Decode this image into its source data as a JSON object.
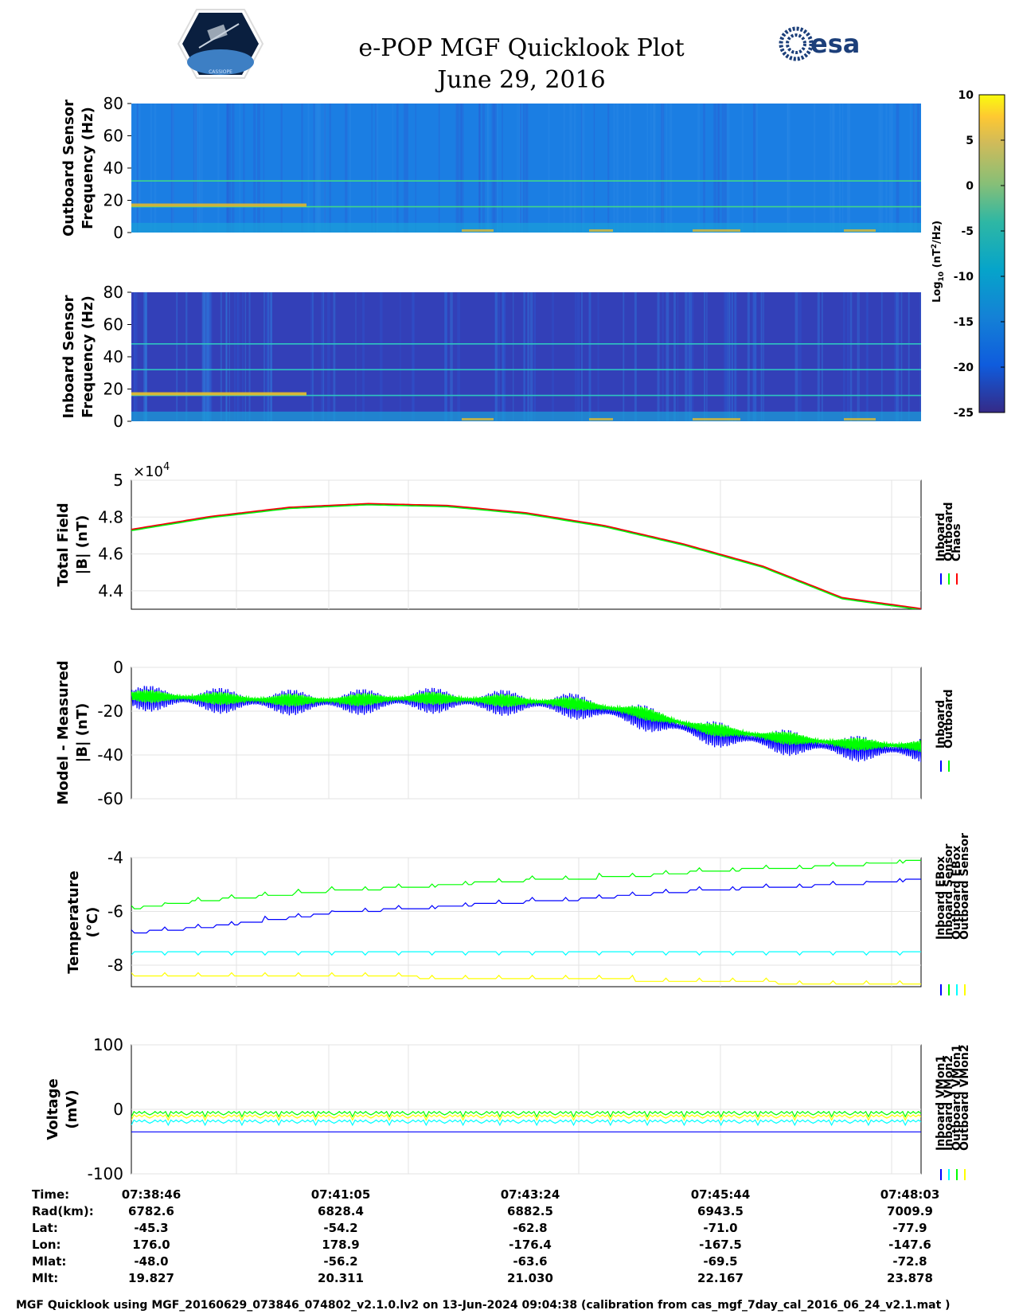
{
  "header": {
    "title_line1": "e-POP MGF Quicklook Plot",
    "title_line2": "June 29, 2016",
    "left_logo": "cassiope-mission-patch",
    "left_logo_text": "CASSIOPE",
    "right_logo": "esa-logo",
    "right_logo_text": "esa"
  },
  "colors": {
    "inboard": "#0000ff",
    "outboard": "#00ff00",
    "chaos": "#ff0000",
    "cyan": "#00ffff",
    "yellow": "#ffff00",
    "grid": "#e3e3e3"
  },
  "colorbar": {
    "ticks": [
      "10",
      "5",
      "0",
      "-5",
      "-10",
      "-15",
      "-20",
      "-25"
    ],
    "range": [
      -25,
      10
    ],
    "label": "Log10 (nT2/Hz)",
    "label_parts": {
      "a": "Log",
      "b": "10",
      "c": " (nT",
      "d": "2",
      "e": "/Hz)"
    },
    "colormap": "parula"
  },
  "chart_data": [
    {
      "type": "heatmap",
      "name": "outboard-spectrogram",
      "ylabel_line1": "Outboard Sensor",
      "ylabel_line2": "Frequency (Hz)",
      "yticks": [
        "80",
        "60",
        "40",
        "20",
        "0"
      ],
      "ylim": [
        0,
        80
      ],
      "background_log10": -15,
      "lines_hz": [
        16,
        32
      ],
      "note": ""
    },
    {
      "type": "heatmap",
      "name": "inboard-spectrogram",
      "ylabel_line1": "Inboard Sensor",
      "ylabel_line2": "Frequency (Hz)",
      "yticks": [
        "80",
        "60",
        "40",
        "20",
        "0"
      ],
      "ylim": [
        0,
        80
      ],
      "background_log10": -20,
      "lines_hz": [
        16,
        32,
        48
      ]
    },
    {
      "type": "line",
      "name": "total-field",
      "ylabel_line1": "Total Field",
      "ylabel_line2": "|B| (nT)",
      "exponent_base": "×10",
      "exponent_power": "4",
      "yticks": [
        "5",
        "4.8",
        "4.6",
        "4.4"
      ],
      "ylim": [
        4.3,
        5.0
      ],
      "x": [
        "07:38:46",
        "07:39:46",
        "07:40:46",
        "07:41:46",
        "07:42:46",
        "07:43:46",
        "07:44:46",
        "07:45:46",
        "07:46:46",
        "07:47:46",
        "07:48:03"
      ],
      "series": [
        {
          "name": "Inboard",
          "color_key": "inboard"
        },
        {
          "name": "Outboard",
          "color_key": "outboard"
        },
        {
          "name": "Chaos",
          "color_key": "chaos"
        }
      ],
      "values": [
        4.73,
        4.8,
        4.85,
        4.87,
        4.86,
        4.82,
        4.75,
        4.65,
        4.53,
        4.36,
        4.3
      ]
    },
    {
      "type": "line",
      "name": "model-minus-measured",
      "ylabel_line1": "Model - Measured",
      "ylabel_line2": "|B| (nT)",
      "yticks": [
        "0",
        "-20",
        "-40",
        "-60"
      ],
      "ylim": [
        -60,
        0
      ],
      "series": [
        {
          "name": "Inboard",
          "color_key": "inboard",
          "values": [
            -14,
            -15,
            -16,
            -16,
            -15,
            -16,
            -17,
            -22,
            -30,
            -34,
            -37,
            -38
          ],
          "amplitude": 6
        },
        {
          "name": "Outboard",
          "color_key": "outboard",
          "values": [
            -13,
            -14,
            -15,
            -15,
            -14,
            -15,
            -16,
            -20,
            -28,
            -32,
            -35,
            -36
          ],
          "amplitude": 3
        }
      ]
    },
    {
      "type": "line",
      "name": "temperature",
      "ylabel_line1": "Temperature",
      "ylabel_line2": "(°C)",
      "yticks": [
        "-4",
        "-6",
        "-8"
      ],
      "ylim": [
        -8.8,
        -4
      ],
      "series": [
        {
          "name": "Inboard EBox",
          "color_key": "inboard",
          "values": [
            -6.8,
            -6.6,
            -6.3,
            -6.0,
            -5.9,
            -5.7,
            -5.6,
            -5.4,
            -5.2,
            -5.1,
            -5.0,
            -4.8
          ]
        },
        {
          "name": "Inboard Sensor",
          "color_key": "outboard",
          "values": [
            -5.9,
            -5.6,
            -5.4,
            -5.2,
            -5.1,
            -4.9,
            -4.8,
            -4.7,
            -4.5,
            -4.4,
            -4.3,
            -4.1
          ]
        },
        {
          "name": "Outboard EBox",
          "color_key": "cyan",
          "values": [
            -7.5,
            -7.5,
            -7.5,
            -7.5,
            -7.5,
            -7.5,
            -7.5,
            -7.5,
            -7.5,
            -7.5,
            -7.5,
            -7.5
          ]
        },
        {
          "name": "Outboard Sensor",
          "color_key": "yellow",
          "values": [
            -8.4,
            -8.4,
            -8.4,
            -8.4,
            -8.45,
            -8.5,
            -8.5,
            -8.55,
            -8.6,
            -8.65,
            -8.7,
            -8.7
          ]
        }
      ]
    },
    {
      "type": "line",
      "name": "voltage",
      "ylabel_line1": "Voltage",
      "ylabel_line2": "(mV)",
      "yticks": [
        "100",
        "0",
        "-100"
      ],
      "ylim": [
        -100,
        100
      ],
      "series": [
        {
          "name": "Inboard VMon1",
          "color_key": "inboard",
          "value": -35
        },
        {
          "name": "Inboard VMon2",
          "color_key": "cyan",
          "value": -18
        },
        {
          "name": "Outboard VMon1",
          "color_key": "outboard",
          "value": -5
        },
        {
          "name": "Outboard VMon2",
          "color_key": "yellow",
          "value": -10
        }
      ]
    }
  ],
  "info_table": {
    "rows": [
      {
        "label": "Time:",
        "values": [
          "07:38:46",
          "07:41:05",
          "07:43:24",
          "07:45:44",
          "07:48:03"
        ]
      },
      {
        "label": "Rad(km):",
        "values": [
          "6782.6",
          "6828.4",
          "6882.5",
          "6943.5",
          "7009.9"
        ]
      },
      {
        "label": "Lat:",
        "values": [
          "-45.3",
          "-54.2",
          "-62.8",
          "-71.0",
          "-77.9"
        ]
      },
      {
        "label": "Lon:",
        "values": [
          "176.0",
          "178.9",
          "-176.4",
          "-167.5",
          "-147.6"
        ]
      },
      {
        "label": "Mlat:",
        "values": [
          "-48.0",
          "-56.2",
          "-63.6",
          "-69.5",
          "-72.8"
        ]
      },
      {
        "label": "Mlt:",
        "values": [
          "19.827",
          "20.311",
          "21.030",
          "22.167",
          "23.878"
        ]
      }
    ]
  },
  "footer": "MGF Quicklook using MGF_20160629_073846_074802_v2.1.0.lv2 on 13-Jun-2024 09:04:38 (calibration from cas_mgf_7day_cal_2016_06_24_v2.1.mat )"
}
